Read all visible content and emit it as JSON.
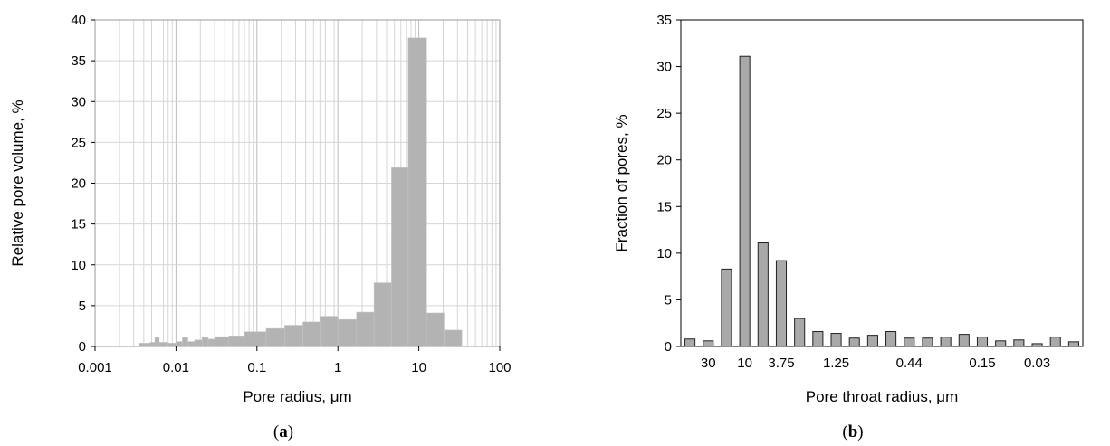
{
  "chart_data": [
    {
      "type": "bar",
      "panel_label": "(a)",
      "panel_letter": "a",
      "xlabel": "Pore radius, μm",
      "ylabel": "Relative pore volume, %",
      "x_scale": "log",
      "xlim": [
        0.001,
        100
      ],
      "ylim": [
        0,
        40
      ],
      "x_ticks": [
        "0.001",
        "0.01",
        "0.1",
        "1",
        "10",
        "100"
      ],
      "y_ticks": [
        "0",
        "5",
        "10",
        "15",
        "20",
        "25",
        "30",
        "35",
        "40"
      ],
      "grid": true,
      "bar_color": "#b3b3b3",
      "bars": [
        {
          "x0": 0.0035,
          "x1": 0.0048,
          "value": 0.4
        },
        {
          "x0": 0.0048,
          "x1": 0.0055,
          "value": 0.5
        },
        {
          "x0": 0.0055,
          "x1": 0.0062,
          "value": 1.1
        },
        {
          "x0": 0.0062,
          "x1": 0.008,
          "value": 0.5
        },
        {
          "x0": 0.008,
          "x1": 0.01,
          "value": 0.4
        },
        {
          "x0": 0.01,
          "x1": 0.012,
          "value": 0.6
        },
        {
          "x0": 0.012,
          "x1": 0.014,
          "value": 1.1
        },
        {
          "x0": 0.014,
          "x1": 0.017,
          "value": 0.6
        },
        {
          "x0": 0.017,
          "x1": 0.021,
          "value": 0.8
        },
        {
          "x0": 0.021,
          "x1": 0.025,
          "value": 1.1
        },
        {
          "x0": 0.025,
          "x1": 0.03,
          "value": 0.9
        },
        {
          "x0": 0.03,
          "x1": 0.045,
          "value": 1.2
        },
        {
          "x0": 0.045,
          "x1": 0.07,
          "value": 1.3
        },
        {
          "x0": 0.07,
          "x1": 0.13,
          "value": 1.8
        },
        {
          "x0": 0.13,
          "x1": 0.22,
          "value": 2.2
        },
        {
          "x0": 0.22,
          "x1": 0.37,
          "value": 2.6
        },
        {
          "x0": 0.37,
          "x1": 0.6,
          "value": 3.0
        },
        {
          "x0": 0.6,
          "x1": 1.0,
          "value": 3.7
        },
        {
          "x0": 1.0,
          "x1": 1.7,
          "value": 3.3
        },
        {
          "x0": 1.7,
          "x1": 2.8,
          "value": 4.2
        },
        {
          "x0": 2.8,
          "x1": 4.6,
          "value": 7.8
        },
        {
          "x0": 4.6,
          "x1": 7.4,
          "value": 21.9
        },
        {
          "x0": 7.4,
          "x1": 12.5,
          "value": 37.8
        },
        {
          "x0": 12.5,
          "x1": 20.5,
          "value": 4.1
        },
        {
          "x0": 20.5,
          "x1": 34.0,
          "value": 2.0
        }
      ]
    },
    {
      "type": "bar",
      "panel_label": "(b)",
      "panel_letter": "b",
      "xlabel": "Pore throat radius, μm",
      "ylabel": "Fraction of pores, %",
      "ylim": [
        0,
        35
      ],
      "y_ticks": [
        "0",
        "5",
        "10",
        "15",
        "20",
        "25",
        "30",
        "35"
      ],
      "x_tick_labels": [
        {
          "label": "30",
          "at_bar": 1.5
        },
        {
          "label": "10",
          "at_bar": 3.5
        },
        {
          "label": "3.75",
          "at_bar": 5.5
        },
        {
          "label": "1.25",
          "at_bar": 8.5
        },
        {
          "label": "0.44",
          "at_bar": 12.5
        },
        {
          "label": "0.15",
          "at_bar": 16.5
        },
        {
          "label": "0.03",
          "at_bar": 19.5
        }
      ],
      "bar_color": "#a9a9a9",
      "values": [
        0.8,
        0.6,
        8.3,
        31.1,
        11.1,
        9.2,
        3.0,
        1.6,
        1.4,
        0.9,
        1.2,
        1.6,
        0.9,
        0.9,
        1.0,
        1.3,
        1.0,
        0.6,
        0.7,
        0.3,
        1.0,
        0.5
      ]
    }
  ]
}
